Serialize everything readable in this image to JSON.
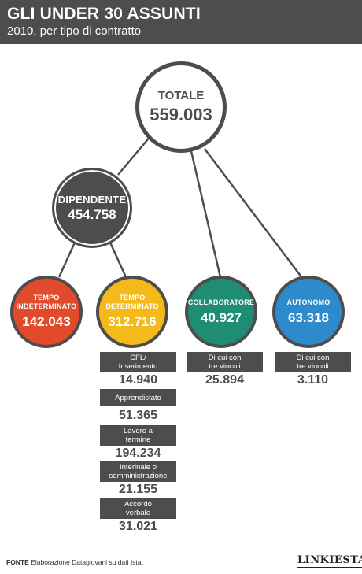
{
  "header": {
    "title": "GLI UNDER 30 ASSUNTI",
    "subtitle": "2010, per tipo di contratto"
  },
  "nodes": {
    "totale": {
      "label": "TOTALE",
      "value": "559.003"
    },
    "dipendente": {
      "label": "DIPENDENTE",
      "value": "454.758"
    },
    "indeterminato": {
      "label": "TEMPO\nINDETERMINATO",
      "value": "142.043",
      "color": "#e24a2c"
    },
    "determinato": {
      "label": "TEMPO\nDETERMINATO",
      "value": "312.716",
      "color": "#f4b91a"
    },
    "collaboratore": {
      "label": "COLLABORATORE",
      "value": "40.927",
      "color": "#1f8c74"
    },
    "autonomo": {
      "label": "AUTONOMO",
      "value": "63.318",
      "color": "#2d8bcc"
    }
  },
  "determinato_breakdown": [
    {
      "label": "CFL/\nInserimento",
      "value": "14.940"
    },
    {
      "label": "Apprendistato",
      "value": "51.365"
    },
    {
      "label": "Lavoro a\ntermine",
      "value": "194.234"
    },
    {
      "label": "Interinale o\nsomministrazione",
      "value": "21.155"
    },
    {
      "label": "Accordo\nverbale",
      "value": "31.021"
    }
  ],
  "collaboratore_breakdown": {
    "label": "Di cui con\ntre vincoli",
    "value": "25.894"
  },
  "autonomo_breakdown": {
    "label": "Di cui con\ntre vincoli",
    "value": "3.110"
  },
  "footer": {
    "source_label": "FONTE",
    "source_text": "Elaborazione Datagiovani su dati Istat",
    "logo": "LINKIESTA"
  },
  "colors": {
    "dark": "#4d4d4d",
    "line": "#4d4d4d"
  }
}
